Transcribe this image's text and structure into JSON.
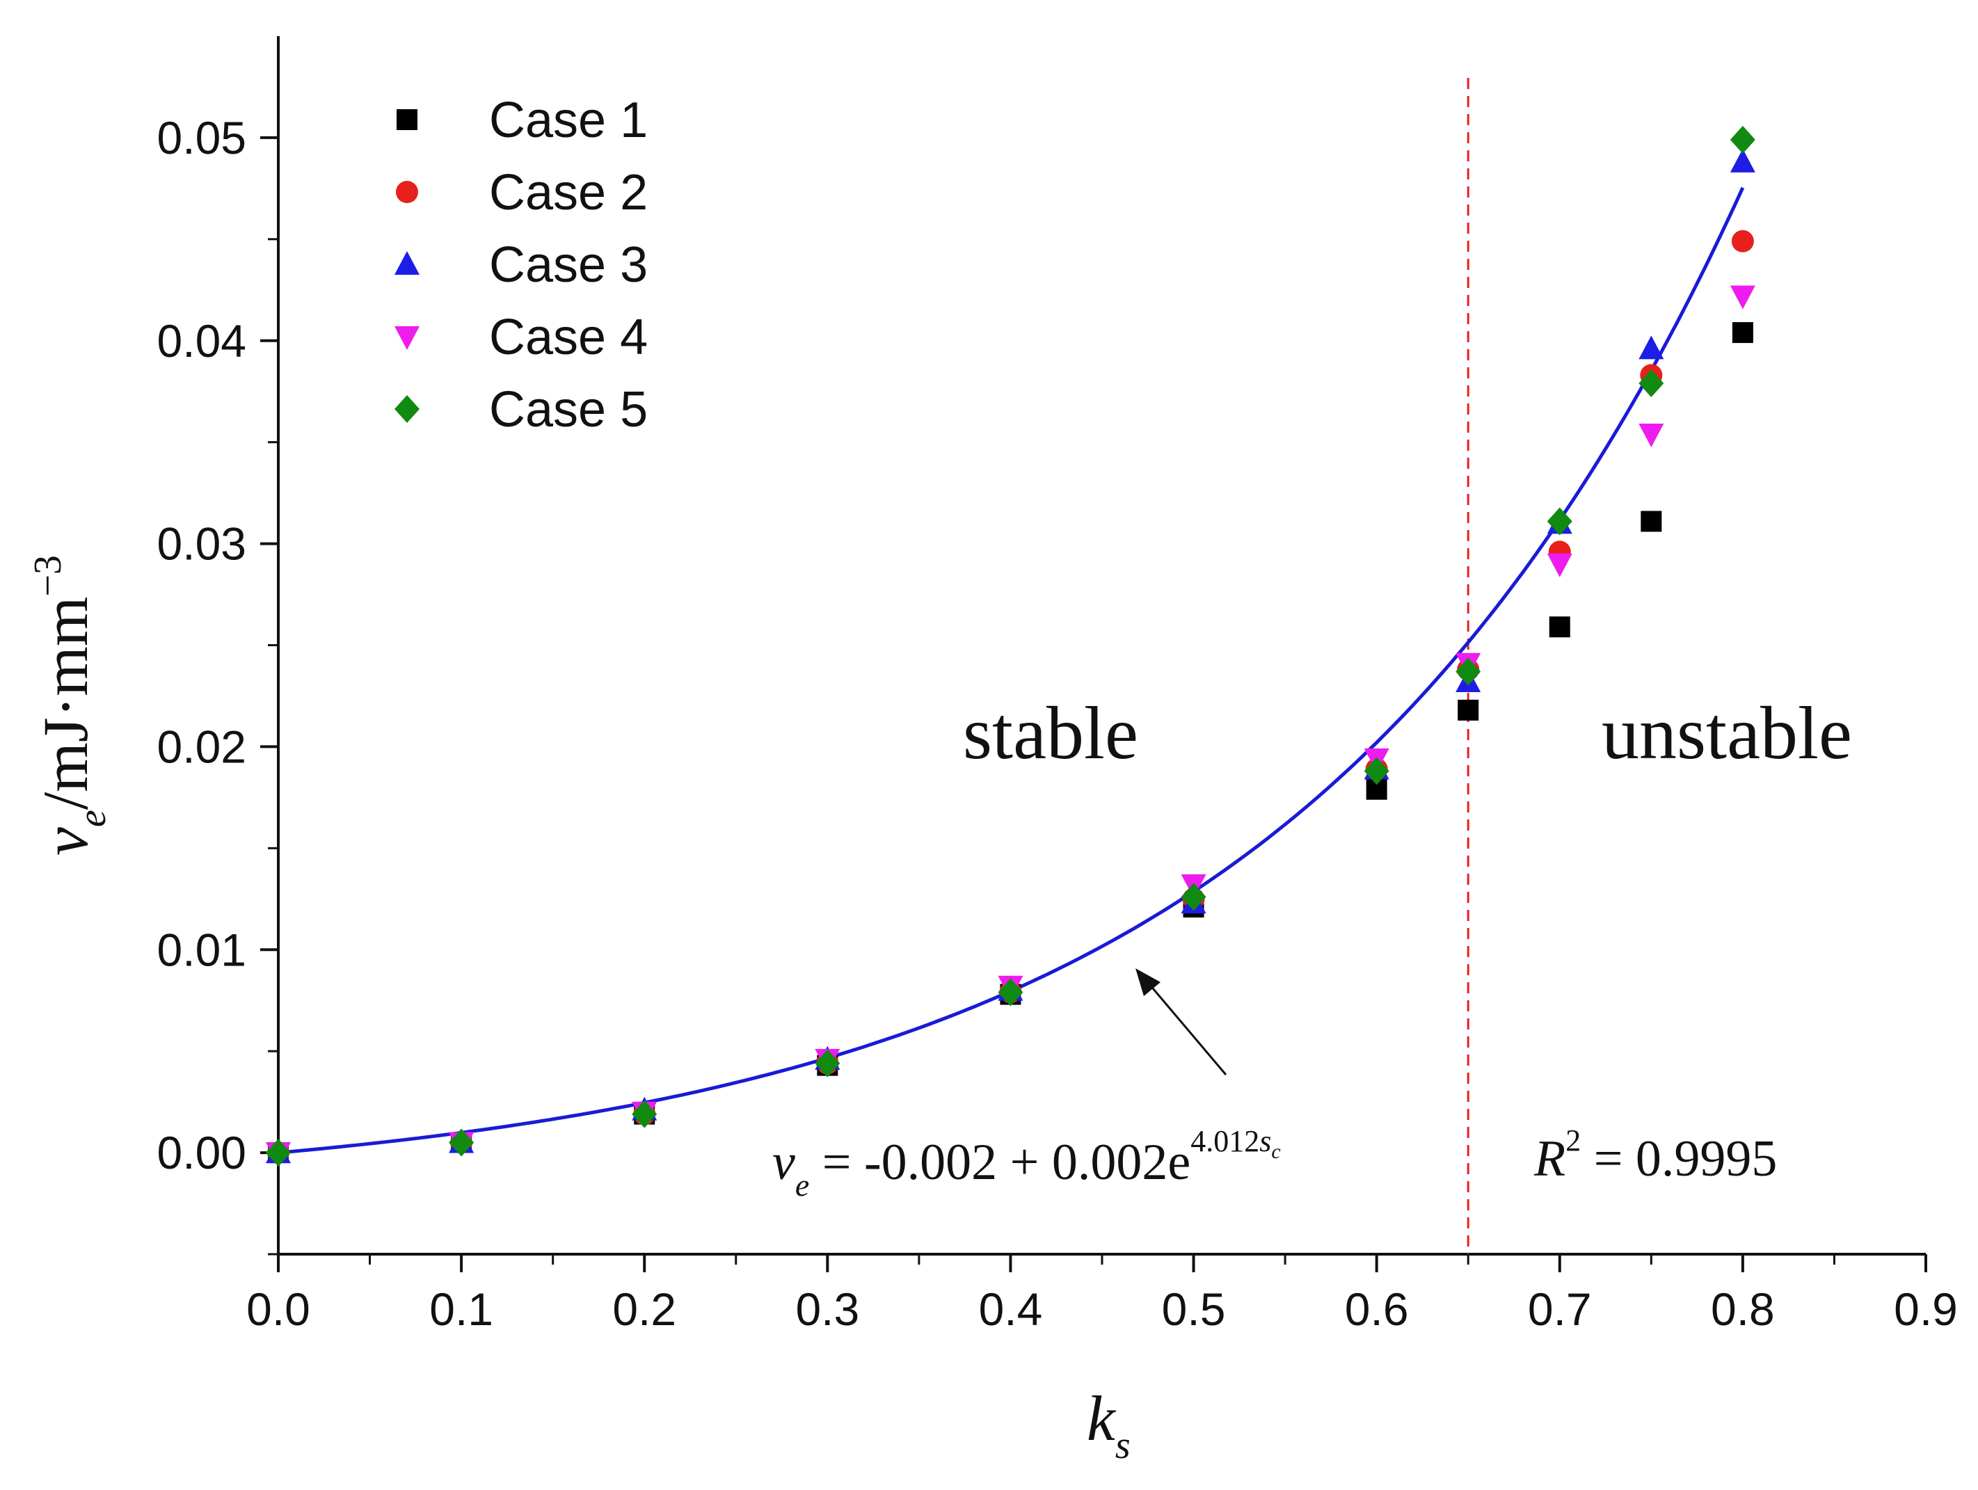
{
  "chart_data": {
    "type": "scatter",
    "xlim": [
      0,
      0.9
    ],
    "ylim": [
      -0.005,
      0.055
    ],
    "x_ticks": [
      "0.0",
      "0.1",
      "0.2",
      "0.3",
      "0.4",
      "0.5",
      "0.6",
      "0.7",
      "0.8",
      "0.9"
    ],
    "y_ticks": [
      "0.00",
      "0.01",
      "0.02",
      "0.03",
      "0.04",
      "0.05"
    ],
    "xlabel": {
      "main": "k",
      "sub": "s"
    },
    "ylabel": {
      "main": "v",
      "sub": "e",
      "unit": "/mJ·mm",
      "sup": "−3"
    },
    "legend_position": "top-left",
    "grid": false,
    "series": [
      {
        "name": "Case 1",
        "marker": "square",
        "color": "#000000",
        "x": [
          0,
          0.1,
          0.2,
          0.3,
          0.4,
          0.5,
          0.6,
          0.65,
          0.7,
          0.75,
          0.8
        ],
        "y": [
          0.0,
          0.0005,
          0.0019,
          0.0043,
          0.0078,
          0.0121,
          0.0179,
          0.0218,
          0.0259,
          0.0311,
          0.0404
        ]
      },
      {
        "name": "Case 2",
        "marker": "circle",
        "color": "#e8201c",
        "x": [
          0,
          0.1,
          0.2,
          0.3,
          0.4,
          0.5,
          0.6,
          0.65,
          0.7,
          0.75,
          0.8
        ],
        "y": [
          0.0,
          0.0005,
          0.0019,
          0.0044,
          0.0079,
          0.0125,
          0.0189,
          0.0238,
          0.0296,
          0.0383,
          0.0449
        ]
      },
      {
        "name": "Case 3",
        "marker": "triangle-up",
        "color": "#1d1de6",
        "x": [
          0,
          0.1,
          0.2,
          0.3,
          0.4,
          0.5,
          0.6,
          0.65,
          0.7,
          0.75,
          0.8
        ],
        "y": [
          0.0,
          0.0005,
          0.0021,
          0.0046,
          0.008,
          0.0123,
          0.0189,
          0.0232,
          0.031,
          0.0396,
          0.0488
        ]
      },
      {
        "name": "Case 4",
        "marker": "triangle-down",
        "color": "#ee1cee",
        "x": [
          0,
          0.1,
          0.2,
          0.3,
          0.4,
          0.5,
          0.6,
          0.65,
          0.7,
          0.75,
          0.8
        ],
        "y": [
          0.0,
          0.0005,
          0.002,
          0.0046,
          0.0082,
          0.0132,
          0.0194,
          0.0241,
          0.029,
          0.0354,
          0.0422
        ]
      },
      {
        "name": "Case 5",
        "marker": "diamond",
        "color": "#108a10",
        "x": [
          0,
          0.1,
          0.2,
          0.3,
          0.4,
          0.5,
          0.6,
          0.65,
          0.7,
          0.75,
          0.8
        ],
        "y": [
          0.0,
          0.0005,
          0.0019,
          0.0044,
          0.0079,
          0.0126,
          0.0188,
          0.0237,
          0.0311,
          0.0379,
          0.0499
        ]
      }
    ],
    "fit_curve": {
      "color": "#1a1ad8",
      "equation_parts": {
        "lhs": "v",
        "lhs_sub": "e",
        "rhs": " = -0.002 + 0.002e",
        "exp": "4.012",
        "exp_var": "s",
        "exp_sub": "c"
      },
      "x_range": [
        0,
        0.8
      ]
    },
    "threshold": {
      "x": 0.65,
      "color": "#e8201c",
      "style": "dashed"
    },
    "annotations": {
      "stable": "stable",
      "unstable": "unstable",
      "r2": {
        "main": "R",
        "sup": "2",
        "value": " = 0.9995"
      }
    }
  }
}
